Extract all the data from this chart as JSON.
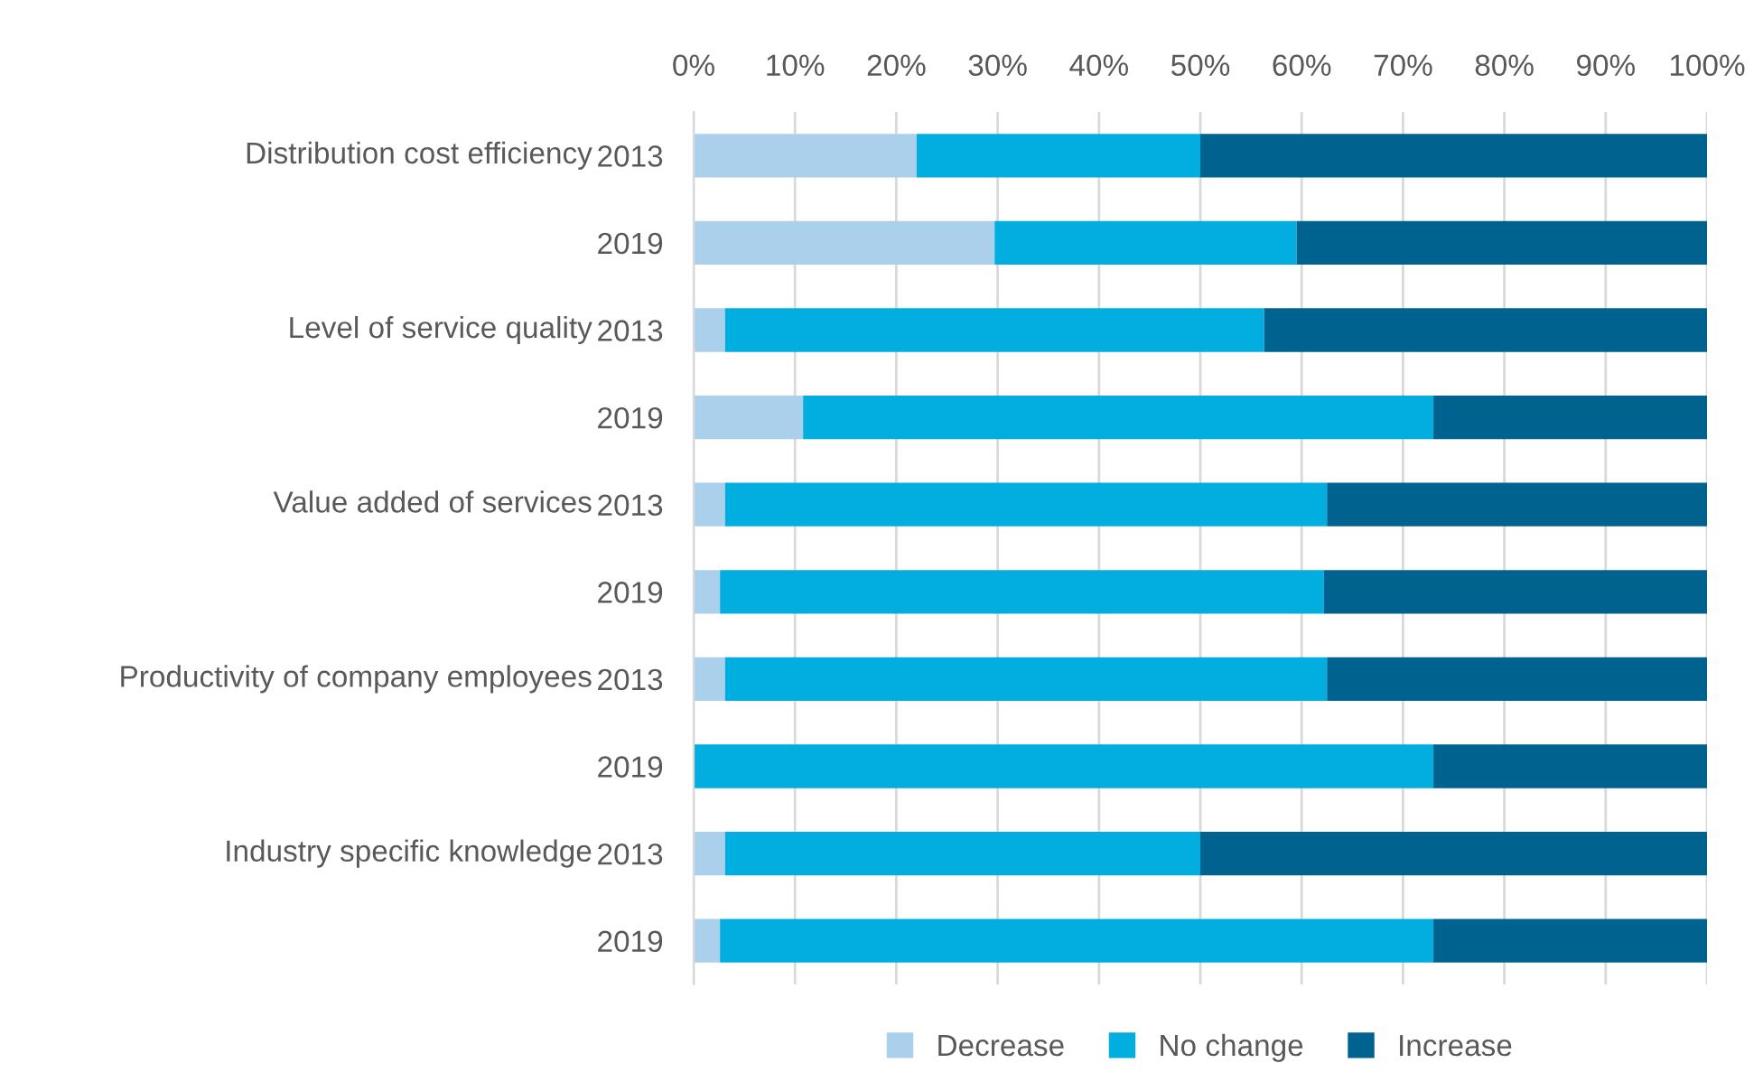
{
  "chart_data": {
    "type": "bar",
    "orientation": "horizontal",
    "stacked": true,
    "categories": [
      "2013",
      "2019",
      "2013",
      "2019",
      "2013",
      "2019",
      "2013",
      "2019",
      "2013",
      "2019"
    ],
    "annotations": [
      "Distribution cost efficiency",
      "Level of service quality",
      "Value added of services",
      "Productivity of company employees",
      "Industry specific knowledge"
    ],
    "series": [
      {
        "name": "Decrease",
        "color": "#abd0ec",
        "values": [
          22,
          29.7,
          3.1,
          10.8,
          3.1,
          2.6,
          3.1,
          0,
          3.1,
          2.6
        ]
      },
      {
        "name": "No change",
        "color": "#02aee0",
        "values": [
          28,
          29.8,
          53.2,
          62.2,
          59.4,
          59.6,
          59.4,
          73,
          46.9,
          70.4
        ]
      },
      {
        "name": "Increase",
        "color": "#00638f",
        "values": [
          50,
          40.5,
          43.7,
          27,
          37.5,
          37.8,
          37.5,
          27,
          50,
          27
        ]
      }
    ],
    "xlim": [
      0,
      100
    ],
    "xticks": [
      {
        "value": 0,
        "label": "0%"
      },
      {
        "value": 10,
        "label": "10%"
      },
      {
        "value": 20,
        "label": "20%"
      },
      {
        "value": 30,
        "label": "30%"
      },
      {
        "value": 40,
        "label": "40%"
      },
      {
        "value": 50,
        "label": "50%"
      },
      {
        "value": 60,
        "label": "60%"
      },
      {
        "value": 70,
        "label": "70%"
      },
      {
        "value": 80,
        "label": "80%"
      },
      {
        "value": 90,
        "label": "90%"
      },
      {
        "value": 100,
        "label": "100%"
      }
    ],
    "grid": "x",
    "legend": "bottom"
  }
}
